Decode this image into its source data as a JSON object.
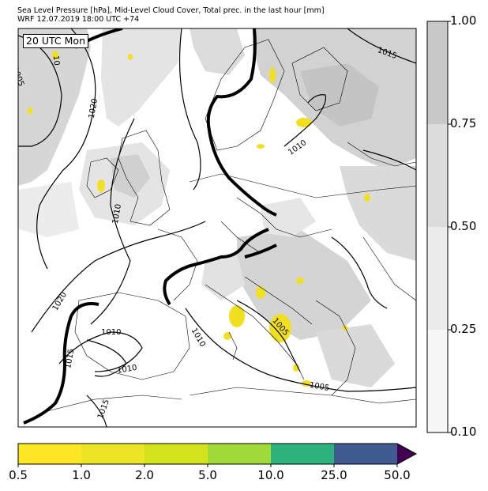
{
  "header": {
    "title_line1": "Sea Level Pressure [hPa], Mid-Level Cloud Cover, Total prec. in the last hour [mm]",
    "title_line2": "WRF 12.07.2019 18:00 UTC +74"
  },
  "map": {
    "valid_time": "20 UTC Mon",
    "isobars": [
      {
        "value": "1005",
        "label": "1005"
      },
      {
        "value": "1010",
        "label": "1010"
      },
      {
        "value": "1015",
        "label": "1015"
      },
      {
        "value": "1020",
        "label": "1020"
      },
      {
        "value": "1010",
        "label": "1010"
      },
      {
        "value": "1020",
        "label": "1020"
      },
      {
        "value": "1010",
        "label": "1010"
      },
      {
        "value": "1010",
        "label": "1010"
      },
      {
        "value": "1010",
        "label": "1010"
      },
      {
        "value": "1015",
        "label": "1015"
      },
      {
        "value": "1015",
        "label": "1015"
      },
      {
        "value": "1005",
        "label": "1005"
      },
      {
        "value": "1005",
        "label": "1005"
      },
      {
        "value": "10",
        "label": "10"
      }
    ],
    "colors": {
      "cloud_high": "#c8c8c8",
      "cloud_mid": "#dcdcdc",
      "cloud_low": "#ececec",
      "precip": "#f0e020",
      "isobar": "#000000",
      "front": "#000000"
    }
  },
  "cloud_colorbar": {
    "ticks": [
      "1.00",
      "0.75",
      "0.50",
      "0.25",
      "0.10"
    ],
    "colors": [
      "#c8c8c8",
      "#dcdcdc",
      "#ececec",
      "#f7f7f7"
    ]
  },
  "precip_colorbar": {
    "ticks": [
      "0.5",
      "1.0",
      "2.0",
      "5.0",
      "10.0",
      "25.0",
      "50.0"
    ],
    "colors": [
      "#fde725",
      "#ece526",
      "#d2e21b",
      "#a0da39",
      "#2db27d",
      "#3e5a91",
      "#440154"
    ]
  }
}
